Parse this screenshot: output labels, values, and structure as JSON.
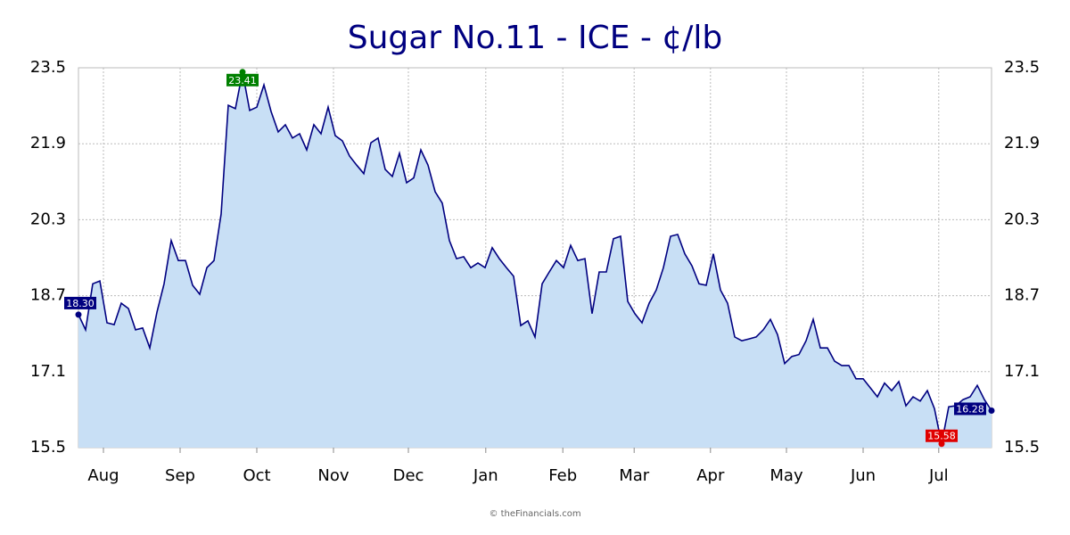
{
  "chart_data": {
    "type": "area",
    "title": "Sugar No.11 - ICE - ¢/lb",
    "footer": "© theFinancials.com",
    "series": [
      {
        "name": "Sugar No.11",
        "color": "#000080",
        "fill": "#c8dff5",
        "values": [
          18.3,
          17.98,
          18.95,
          19.01,
          18.13,
          18.09,
          18.54,
          18.43,
          17.98,
          18.02,
          17.6,
          18.35,
          18.95,
          19.86,
          19.44,
          19.44,
          18.92,
          18.73,
          19.29,
          19.44,
          20.42,
          22.71,
          22.64,
          23.41,
          22.6,
          22.67,
          23.14,
          22.58,
          22.15,
          22.3,
          22.02,
          22.11,
          21.77,
          22.3,
          22.11,
          22.67,
          22.07,
          21.96,
          21.64,
          21.45,
          21.27,
          21.92,
          22.02,
          21.36,
          21.21,
          21.7,
          21.08,
          21.18,
          21.77,
          21.45,
          20.89,
          20.65,
          19.86,
          19.48,
          19.52,
          19.29,
          19.39,
          19.29,
          19.71,
          19.48,
          19.29,
          19.11,
          18.07,
          18.17,
          17.83,
          18.95,
          19.2,
          19.44,
          19.29,
          19.76,
          19.44,
          19.48,
          18.32,
          19.2,
          19.2,
          19.9,
          19.95,
          18.58,
          18.32,
          18.13,
          18.54,
          18.82,
          19.29,
          19.95,
          19.99,
          19.58,
          19.33,
          18.95,
          18.92,
          19.58,
          18.82,
          18.54,
          17.83,
          17.75,
          17.79,
          17.83,
          17.98,
          18.2,
          17.88,
          17.27,
          17.42,
          17.46,
          17.75,
          18.2,
          17.6,
          17.6,
          17.32,
          17.23,
          17.23,
          16.95,
          16.95,
          16.76,
          16.57,
          16.86,
          16.7,
          16.89,
          16.38,
          16.57,
          16.48,
          16.7,
          16.32,
          15.58,
          16.36,
          16.38,
          16.51,
          16.57,
          16.81,
          16.51,
          16.28
        ]
      }
    ],
    "markers": [
      {
        "index": 0,
        "label": "18.30",
        "color": "#000080"
      },
      {
        "index": 23,
        "label": "23.41",
        "color": "#008000"
      },
      {
        "index": 121,
        "label": "15.58",
        "color": "#e00000"
      },
      {
        "index": 128,
        "label": "16.28",
        "color": "#000080"
      }
    ],
    "xlim": [
      0,
      128
    ],
    "xticks": [
      {
        "value": 3.5,
        "label": "Aug"
      },
      {
        "value": 14.25,
        "label": "Sep"
      },
      {
        "value": 25,
        "label": "Oct"
      },
      {
        "value": 35.75,
        "label": "Nov"
      },
      {
        "value": 46.25,
        "label": "Dec"
      },
      {
        "value": 57.1,
        "label": "Jan"
      },
      {
        "value": 67.9,
        "label": "Feb"
      },
      {
        "value": 77.9,
        "label": "Mar"
      },
      {
        "value": 88.6,
        "label": "Apr"
      },
      {
        "value": 99.25,
        "label": "May"
      },
      {
        "value": 110,
        "label": "Jun"
      },
      {
        "value": 120.6,
        "label": "Jul"
      }
    ],
    "ylim": [
      15.5,
      23.5
    ],
    "yticks": [
      15.5,
      17.1,
      18.7,
      20.3,
      21.9,
      23.5
    ],
    "grid": true
  }
}
